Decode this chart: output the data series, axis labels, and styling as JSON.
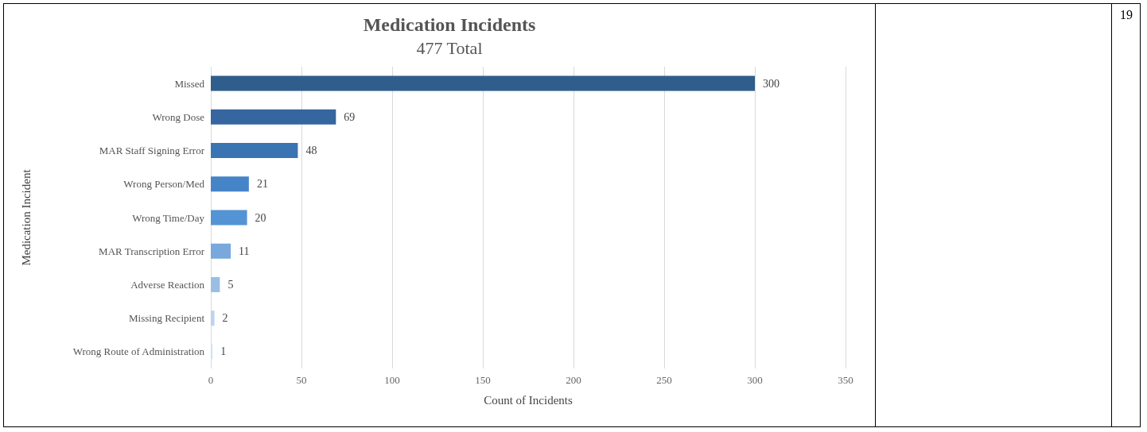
{
  "chart_data": {
    "type": "bar",
    "orientation": "horizontal",
    "title": "Medication Incidents",
    "subtitle": "477 Total",
    "xlabel": "Count of Incidents",
    "ylabel": "Medication Incident",
    "categories": [
      "Missed",
      "Wrong Dose",
      "MAR Staff Signing Error",
      "Wrong Person/Med",
      "Wrong Time/Day",
      "MAR Transcription Error",
      "Adverse Reaction",
      "Missing Recipient",
      "Wrong Route of Administration"
    ],
    "values": [
      300,
      69,
      48,
      21,
      20,
      11,
      5,
      2,
      1
    ],
    "colors": [
      "#2f5d8c",
      "#3566a0",
      "#3b74b3",
      "#4684c8",
      "#5494d4",
      "#78a8dc",
      "#9bbfe4",
      "#bcd3ec",
      "#d3e2f2"
    ],
    "xlim": [
      0,
      350
    ],
    "xticks": [
      0,
      50,
      100,
      150,
      200,
      250,
      300,
      350
    ],
    "grid": "x",
    "data_labels": true,
    "annotations": [
      "19"
    ]
  }
}
